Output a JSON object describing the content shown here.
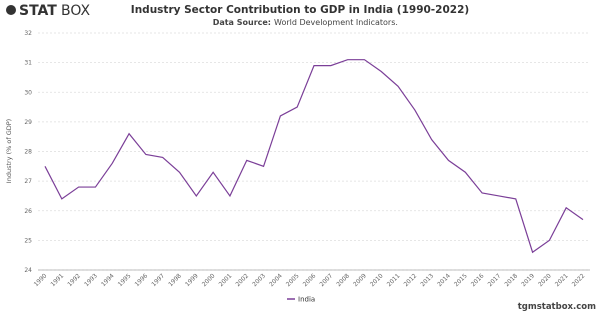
{
  "brand": {
    "bold": "STAT",
    "light": "BOX"
  },
  "footer": "tgmstatbox.com",
  "chart_data": {
    "type": "line",
    "title": "Industry Sector Contribution to GDP in India (1990-2022)",
    "source_label": "Data Source:",
    "source": "World Development Indicators.",
    "y_label": "Industry (% of GDP)",
    "categories": [
      "1990",
      "1991",
      "1992",
      "1993",
      "1994",
      "1995",
      "1996",
      "1997",
      "1998",
      "1999",
      "2000",
      "2001",
      "2002",
      "2003",
      "2004",
      "2005",
      "2006",
      "2007",
      "2008",
      "2009",
      "2010",
      "2011",
      "2012",
      "2013",
      "2014",
      "2015",
      "2016",
      "2017",
      "2018",
      "2019",
      "2020",
      "2021",
      "2022"
    ],
    "series": [
      {
        "name": "India",
        "color": "#7b3f98",
        "values": [
          27.5,
          26.4,
          26.8,
          26.8,
          27.6,
          28.6,
          27.9,
          27.8,
          27.3,
          26.5,
          27.3,
          26.5,
          27.7,
          27.5,
          29.2,
          29.5,
          30.9,
          30.9,
          31.1,
          31.1,
          30.7,
          30.2,
          29.4,
          28.4,
          27.7,
          27.3,
          26.6,
          26.5,
          26.4,
          24.6,
          25.0,
          26.1,
          25.7
        ]
      }
    ],
    "ylim": [
      24,
      32
    ],
    "yticks": [
      24,
      25,
      26,
      27,
      28,
      29,
      30,
      31,
      32
    ],
    "grid": true
  }
}
